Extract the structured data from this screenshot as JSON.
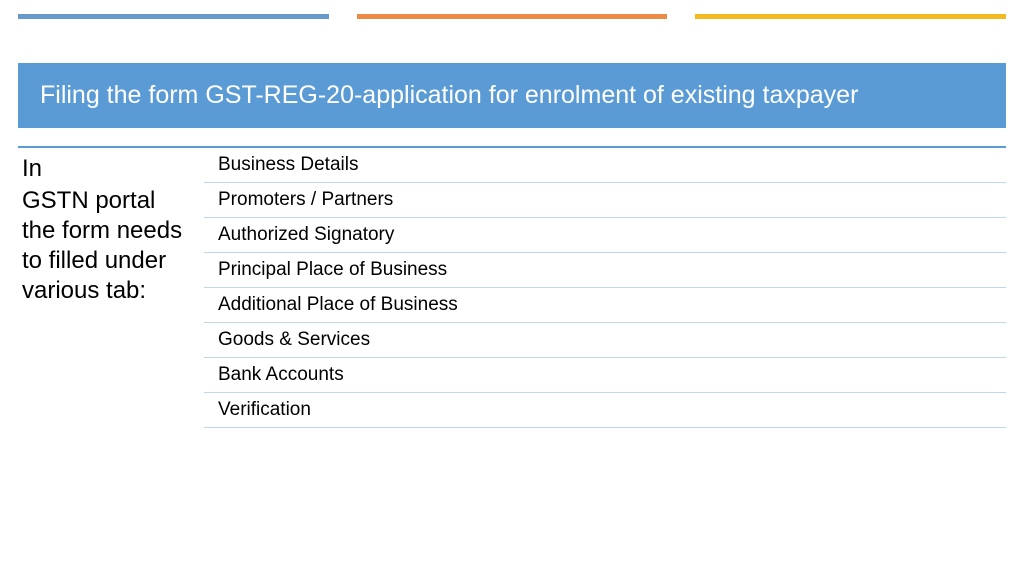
{
  "colors": {
    "stripe_blue": "#6699cc",
    "stripe_orange": "#ec8b44",
    "stripe_yellow": "#f3ba1f",
    "title_bg": "#5b9bd5",
    "title_text": "#ffffff",
    "rule": "#5b9bd5",
    "row_divider": "#bfd7eb",
    "body_text": "#000000"
  },
  "title": "Filing the form GST-REG-20-application for enrolment of existing taxpayer",
  "left": {
    "line1": "In",
    "line2": "GSTN portal the form needs to filled under various tab:"
  },
  "tabs": [
    "Business Details",
    "Promoters / Partners",
    "Authorized Signatory",
    "Principal Place of Business",
    "Additional Place of Business",
    "Goods & Services",
    "Bank Accounts",
    "Verification"
  ],
  "typography": {
    "title_fontsize": 25,
    "body_fontsize": 24,
    "list_fontsize": 19
  }
}
